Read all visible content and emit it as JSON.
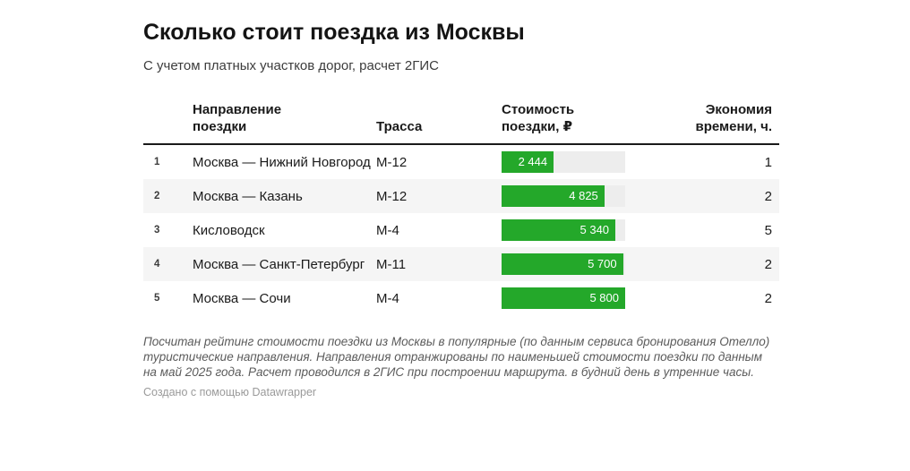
{
  "header": {
    "title": "Сколько стоит поездка из Москвы",
    "subtitle": "С учетом платных участков дорог, расчет 2ГИС"
  },
  "table": {
    "columns": {
      "index": "",
      "direction": "Направление\nпоездки",
      "route": "Трасса",
      "cost": "Стоимость\nпоездки, ₽",
      "savings": "Экономия\nвремени, ч."
    },
    "bar_max": 5800,
    "rows": [
      {
        "index": "1",
        "direction": "Москва — Нижний Новгород",
        "route": "М-12",
        "cost_label": "2 444",
        "cost_value": 2444,
        "savings": "1"
      },
      {
        "index": "2",
        "direction": "Москва — Казань",
        "route": "М-12",
        "cost_label": "4 825",
        "cost_value": 4825,
        "savings": "2"
      },
      {
        "index": "3",
        "direction": "Кисловодск",
        "route": "М-4",
        "cost_label": "5 340",
        "cost_value": 5340,
        "savings": "5"
      },
      {
        "index": "4",
        "direction": "Москва — Санкт-Петербург",
        "route": "М-11",
        "cost_label": "5 700",
        "cost_value": 5700,
        "savings": "2"
      },
      {
        "index": "5",
        "direction": "Москва — Сочи",
        "route": "М-4",
        "cost_label": "5 800",
        "cost_value": 5800,
        "savings": "2"
      }
    ]
  },
  "chart_data": {
    "type": "table",
    "title": "Сколько стоит поездка из Москвы",
    "subtitle": "С учетом платных участков дорог, расчет 2ГИС",
    "columns": [
      "Направление поездки",
      "Трасса",
      "Стоимость поездки, ₽",
      "Экономия времени, ч."
    ],
    "rows": [
      {
        "rank": 1,
        "direction": "Москва — Нижний Новгород",
        "route": "М-12",
        "cost_rub": 2444,
        "time_saved_h": 1
      },
      {
        "rank": 2,
        "direction": "Москва — Казань",
        "route": "М-12",
        "cost_rub": 4825,
        "time_saved_h": 2
      },
      {
        "rank": 3,
        "direction": "Кисловодск",
        "route": "М-4",
        "cost_rub": 5340,
        "time_saved_h": 5
      },
      {
        "rank": 4,
        "direction": "Москва — Санкт-Петербург",
        "route": "М-11",
        "cost_rub": 5700,
        "time_saved_h": 2
      },
      {
        "rank": 5,
        "direction": "Москва — Сочи",
        "route": "М-4",
        "cost_rub": 5800,
        "time_saved_h": 2
      }
    ],
    "bar_column": "Стоимость поездки, ₽",
    "bar_range": [
      0,
      5800
    ],
    "bar_color": "#24a82a",
    "legend_position": "none",
    "grid": false
  },
  "footer": {
    "notes": "Посчитан рейтинг стоимости поездки из Москвы в популярные (по данным сервиса бронирования Отелло) туристические направления. Направления отранжированы по наименьшей стоимости поездки по данным на май 2025 года. Расчет проводился в 2ГИС при построении маршрута. в будний день в утренние часы.",
    "attribution_prefix": "Создано с помощью ",
    "attribution_link": "Datawrapper"
  },
  "colors": {
    "bar_green": "#24a82a",
    "bar_track": "#ededed",
    "row_alt_bg": "#f5f5f5",
    "header_rule": "#1a1a1a",
    "text_primary": "#1a1a1a",
    "text_notes": "#5b5b5b",
    "text_attribution": "#9a9a9a"
  }
}
